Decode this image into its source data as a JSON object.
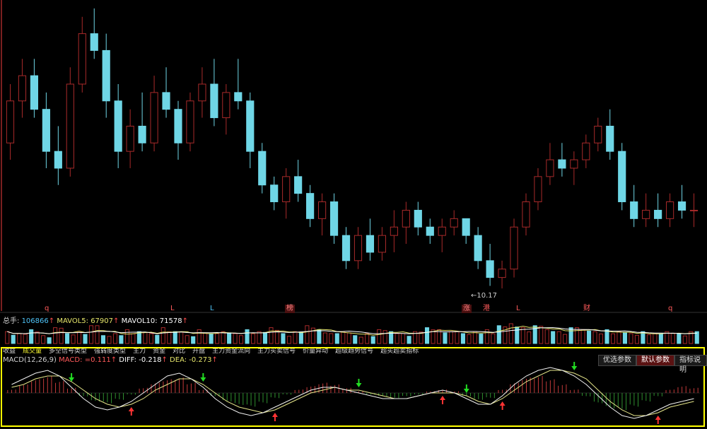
{
  "chart_data": {
    "type": "candlestick",
    "price_panel": {
      "low_annotation": "10.17",
      "event_markers": [
        {
          "label": "q",
          "style": "plain"
        },
        {
          "label": "L",
          "style": "plain"
        },
        {
          "label": "L",
          "style": "blue"
        },
        {
          "label": "榜",
          "style": "box"
        },
        {
          "label": "涨",
          "style": "box"
        },
        {
          "label": "港",
          "style": "plain"
        },
        {
          "label": "L",
          "style": "plain"
        },
        {
          "label": "财",
          "style": "plain"
        },
        {
          "label": "q",
          "style": "plain"
        }
      ],
      "candles_ohlc": [
        [
          11.9,
          12.6,
          11.7,
          12.4
        ],
        [
          12.4,
          12.9,
          12.2,
          12.7
        ],
        [
          12.7,
          12.9,
          12.2,
          12.3
        ],
        [
          12.3,
          12.5,
          11.6,
          11.8
        ],
        [
          11.8,
          12.1,
          11.4,
          11.6
        ],
        [
          11.6,
          12.8,
          11.5,
          12.6
        ],
        [
          12.6,
          13.4,
          12.5,
          13.2
        ],
        [
          13.2,
          13.5,
          12.9,
          13.0
        ],
        [
          13.0,
          13.2,
          12.2,
          12.4
        ],
        [
          12.4,
          12.6,
          11.6,
          11.8
        ],
        [
          11.8,
          12.3,
          11.6,
          12.1
        ],
        [
          12.1,
          12.5,
          11.8,
          11.9
        ],
        [
          11.9,
          12.7,
          11.8,
          12.5
        ],
        [
          12.5,
          12.8,
          12.2,
          12.3
        ],
        [
          12.3,
          12.4,
          11.7,
          11.9
        ],
        [
          11.9,
          12.5,
          11.8,
          12.4
        ],
        [
          12.4,
          12.8,
          12.2,
          12.6
        ],
        [
          12.6,
          12.9,
          12.1,
          12.2
        ],
        [
          12.2,
          12.6,
          12.0,
          12.5
        ],
        [
          12.5,
          12.9,
          12.3,
          12.4
        ],
        [
          12.4,
          12.5,
          11.6,
          11.8
        ],
        [
          11.8,
          11.9,
          11.3,
          11.4
        ],
        [
          11.4,
          11.5,
          11.1,
          11.2
        ],
        [
          11.2,
          11.6,
          11.0,
          11.5
        ],
        [
          11.5,
          11.7,
          11.2,
          11.3
        ],
        [
          11.3,
          11.4,
          10.9,
          11.0
        ],
        [
          11.0,
          11.3,
          10.8,
          11.2
        ],
        [
          11.2,
          11.3,
          10.7,
          10.8
        ],
        [
          10.8,
          10.9,
          10.4,
          10.5
        ],
        [
          10.5,
          10.9,
          10.4,
          10.8
        ],
        [
          10.8,
          11.0,
          10.5,
          10.6
        ],
        [
          10.6,
          10.9,
          10.5,
          10.8
        ],
        [
          10.8,
          11.1,
          10.6,
          10.9
        ],
        [
          10.9,
          11.2,
          10.7,
          11.1
        ],
        [
          11.1,
          11.2,
          10.8,
          10.9
        ],
        [
          10.9,
          11.0,
          10.7,
          10.8
        ],
        [
          10.8,
          11.0,
          10.6,
          10.9
        ],
        [
          10.9,
          11.1,
          10.8,
          11.0
        ],
        [
          11.0,
          11.0,
          10.7,
          10.8
        ],
        [
          10.8,
          10.9,
          10.4,
          10.5
        ],
        [
          10.5,
          10.7,
          10.2,
          10.3
        ],
        [
          10.3,
          10.5,
          10.17,
          10.4
        ],
        [
          10.4,
          11.0,
          10.3,
          10.9
        ],
        [
          10.9,
          11.3,
          10.8,
          11.2
        ],
        [
          11.2,
          11.6,
          11.1,
          11.5
        ],
        [
          11.5,
          11.9,
          11.4,
          11.7
        ],
        [
          11.7,
          11.9,
          11.5,
          11.6
        ],
        [
          11.6,
          11.8,
          11.4,
          11.7
        ],
        [
          11.7,
          12.0,
          11.6,
          11.9
        ],
        [
          11.9,
          12.2,
          11.8,
          12.1
        ],
        [
          12.1,
          12.3,
          11.7,
          11.8
        ],
        [
          11.8,
          11.9,
          11.1,
          11.2
        ],
        [
          11.2,
          11.4,
          10.9,
          11.0
        ],
        [
          11.0,
          11.3,
          10.9,
          11.1
        ],
        [
          11.1,
          11.3,
          10.9,
          11.0
        ],
        [
          11.0,
          11.3,
          10.9,
          11.2
        ],
        [
          11.2,
          11.4,
          11.0,
          11.1
        ],
        [
          11.1,
          11.3,
          10.9,
          11.1
        ]
      ]
    },
    "volume_panel": {
      "label": "总手:",
      "total": "106866",
      "mavol5_label": "MAVOL5:",
      "mavol5": "67907",
      "mavol10_label": "MAVOL10:",
      "mavol10": "71578",
      "bars_relative": [
        0.6,
        0.5,
        0.7,
        0.4,
        0.8,
        0.5,
        0.6,
        0.9,
        0.4,
        0.5,
        0.7,
        0.6,
        0.5,
        0.8,
        0.6,
        0.4,
        0.7,
        0.5,
        0.6,
        0.5,
        0.7,
        0.6,
        0.8,
        0.5,
        0.6,
        0.9,
        0.7,
        0.5,
        0.6,
        0.4,
        0.5,
        0.7,
        0.6,
        0.5,
        0.6,
        0.8,
        0.7,
        0.6,
        0.5,
        0.6,
        0.7,
        0.9,
        1.0,
        0.8,
        0.9,
        0.7,
        0.6,
        0.8,
        0.7,
        0.6,
        0.7,
        0.6,
        0.5,
        0.6,
        0.5,
        0.6,
        0.5,
        0.6
      ]
    },
    "indicator_tabs": [
      "收益",
      "成交量",
      "多空信号类型",
      "强弱度类型",
      "主力",
      "资金",
      "对比",
      "开盘",
      "主力资金流向",
      "主力买卖信号",
      "价量异动",
      "超级趋势信号",
      "超买超卖指标"
    ],
    "active_tab_index": 1,
    "macd_panel": {
      "name": "MACD(12,26,9)",
      "macd_label": "MACD:",
      "macd": "=0.111",
      "diff_label": "DIFF:",
      "diff": "-0.218",
      "dea_label": "DEA:",
      "dea": "-0.273",
      "buttons": [
        "优选参数",
        "默认参数",
        "指标说明"
      ],
      "active_button_index": 1,
      "histogram": [
        0.2,
        0.5,
        0.8,
        1.0,
        0.7,
        0.3,
        -0.2,
        -0.5,
        -0.6,
        -0.4,
        -0.1,
        0.3,
        0.6,
        0.8,
        0.9,
        0.6,
        0.2,
        -0.2,
        -0.5,
        -0.7,
        -0.8,
        -0.6,
        -0.3,
        -0.1,
        0.2,
        0.4,
        0.6,
        0.5,
        0.3,
        0.1,
        -0.1,
        -0.2,
        -0.3,
        -0.2,
        -0.1,
        0.1,
        0.2,
        0.1,
        -0.2,
        -0.4,
        -0.3,
        0.2,
        0.6,
        0.9,
        1.0,
        0.8,
        0.5,
        0.2,
        -0.2,
        -0.6,
        -0.9,
        -1.0,
        -0.8,
        -0.5,
        -0.2,
        0.2,
        0.4,
        0.3
      ],
      "diff_line": [
        0.3,
        0.5,
        0.7,
        0.8,
        0.6,
        0.2,
        -0.2,
        -0.5,
        -0.6,
        -0.5,
        -0.3,
        0.0,
        0.3,
        0.6,
        0.7,
        0.5,
        0.2,
        -0.2,
        -0.5,
        -0.7,
        -0.8,
        -0.7,
        -0.5,
        -0.3,
        -0.1,
        0.1,
        0.2,
        0.2,
        0.1,
        0.0,
        -0.1,
        -0.2,
        -0.2,
        -0.2,
        -0.1,
        0.0,
        0.1,
        0.0,
        -0.2,
        -0.4,
        -0.4,
        -0.1,
        0.3,
        0.6,
        0.8,
        0.9,
        0.8,
        0.6,
        0.3,
        -0.1,
        -0.5,
        -0.8,
        -0.9,
        -0.8,
        -0.6,
        -0.4,
        -0.3,
        -0.2
      ],
      "dea_line": [
        0.2,
        0.3,
        0.5,
        0.6,
        0.6,
        0.4,
        0.1,
        -0.2,
        -0.4,
        -0.5,
        -0.4,
        -0.2,
        0.1,
        0.3,
        0.5,
        0.5,
        0.3,
        0.0,
        -0.3,
        -0.5,
        -0.6,
        -0.7,
        -0.6,
        -0.4,
        -0.2,
        0.0,
        0.1,
        0.2,
        0.1,
        0.1,
        0.0,
        -0.1,
        -0.2,
        -0.2,
        -0.1,
        0.0,
        0.0,
        0.0,
        -0.1,
        -0.3,
        -0.4,
        -0.2,
        0.1,
        0.4,
        0.6,
        0.8,
        0.8,
        0.7,
        0.5,
        0.1,
        -0.3,
        -0.6,
        -0.8,
        -0.8,
        -0.7,
        -0.5,
        -0.4,
        -0.3
      ]
    },
    "colors": {
      "background": "#000000",
      "up": "#a82a2a",
      "down": "#6fd6e6",
      "macd_pos": "#c33a3a",
      "macd_neg": "#2f8f2f",
      "diff_line": "#f2f2f2",
      "dea_line": "#e6e68a",
      "highlight_border": "#ffff00",
      "buy_arrow": "#ff3333",
      "sell_arrow": "#22dd22"
    }
  }
}
